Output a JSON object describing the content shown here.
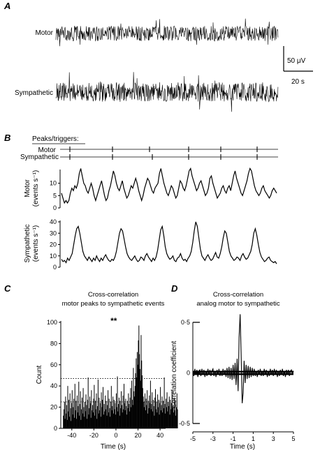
{
  "panels": {
    "A": "A",
    "B": "B",
    "C": "C",
    "D": "D"
  },
  "panelA": {
    "motor_label": "Motor",
    "sympathetic_label": "Sympathetic",
    "scale_voltage": "50 μV",
    "scale_time": "20 s"
  },
  "panelB": {
    "peaks_header": "Peaks/triggers:",
    "motor_label": "Motor",
    "sympathetic_label": "Sympathetic"
  },
  "chart_data": [
    {
      "id": "B-motor-rate",
      "type": "line",
      "ylabel_line1": "Motor",
      "ylabel_line2": "(events s⁻¹)",
      "ylim": [
        0,
        15
      ],
      "yticks": [
        "0",
        "5",
        "10"
      ],
      "values": [
        6,
        4,
        2,
        3,
        2,
        3,
        6,
        8,
        7,
        9,
        8,
        10,
        14,
        16,
        13,
        10,
        9,
        7,
        6,
        8,
        10,
        8,
        5,
        3,
        5,
        7,
        9,
        11,
        8,
        5,
        3,
        4,
        7,
        9,
        12,
        15,
        13,
        10,
        8,
        7,
        9,
        11,
        8,
        6,
        4,
        5,
        7,
        9,
        8,
        10,
        12,
        10,
        7,
        5,
        3,
        5,
        8,
        10,
        12,
        11,
        9,
        7,
        6,
        8,
        9,
        10,
        14,
        16,
        13,
        10,
        8,
        6,
        5,
        7,
        9,
        8,
        6,
        4,
        5,
        8,
        11,
        10,
        8,
        7,
        9,
        12,
        15,
        16,
        13,
        11,
        9,
        7,
        8,
        10,
        11,
        9,
        7,
        5,
        6,
        8,
        12,
        13,
        10,
        8,
        6,
        4,
        5,
        6,
        8,
        9,
        7,
        6,
        8,
        9,
        7,
        10,
        13,
        15,
        12,
        10,
        8,
        6,
        5,
        7,
        9,
        11,
        14,
        16,
        15,
        12,
        9,
        7,
        6,
        5,
        6,
        8,
        9,
        7,
        6,
        5,
        4,
        5,
        7,
        8,
        7,
        6
      ]
    },
    {
      "id": "B-sympathetic-rate",
      "type": "line",
      "ylabel_line1": "Sympathetic",
      "ylabel_line2": "(events s⁻¹)",
      "ylim": [
        0,
        40
      ],
      "yticks": [
        "0",
        "10",
        "20",
        "30",
        "40"
      ],
      "values": [
        7,
        5,
        6,
        4,
        8,
        6,
        9,
        12,
        20,
        28,
        34,
        36,
        30,
        22,
        14,
        10,
        8,
        6,
        9,
        7,
        5,
        8,
        6,
        10,
        7,
        5,
        8,
        6,
        9,
        11,
        8,
        6,
        5,
        7,
        6,
        9,
        14,
        22,
        30,
        34,
        32,
        25,
        18,
        12,
        9,
        7,
        6,
        8,
        10,
        7,
        5,
        6,
        9,
        8,
        6,
        10,
        12,
        9,
        7,
        5,
        8,
        6,
        9,
        15,
        24,
        33,
        36,
        28,
        18,
        12,
        9,
        7,
        8,
        10,
        6,
        5,
        8,
        9,
        12,
        8,
        6,
        7,
        5,
        8,
        10,
        14,
        22,
        32,
        40,
        36,
        26,
        16,
        10,
        8,
        6,
        9,
        11,
        8,
        6,
        7,
        10,
        13,
        9,
        8,
        12,
        18,
        26,
        32,
        30,
        22,
        14,
        10,
        8,
        6,
        7,
        9,
        8,
        6,
        10,
        12,
        9,
        7,
        8,
        11,
        14,
        20,
        30,
        34,
        28,
        20,
        13,
        9,
        7,
        5,
        6,
        8,
        9,
        6,
        5,
        4,
        5,
        3
      ]
    },
    {
      "id": "C",
      "type": "bar",
      "title_line1": "Cross-correlation",
      "title_line2": "motor peaks to sympathetic events",
      "xlabel": "Time (s)",
      "ylabel": "Count",
      "xlim": [
        -50,
        45
      ],
      "ylim": [
        0,
        100
      ],
      "xticks": [
        "-40",
        "-20",
        "0",
        "20",
        "40"
      ],
      "yticks": [
        "0",
        "20",
        "40",
        "60",
        "80",
        "100"
      ],
      "significance_mark": "**",
      "threshold_upper": 47,
      "threshold_lower": 25,
      "bin_width": 0.5,
      "x_start": -48,
      "values": [
        12,
        18,
        25,
        9,
        30,
        14,
        22,
        8,
        40,
        16,
        27,
        11,
        33,
        19,
        7,
        24,
        36,
        13,
        20,
        28,
        10,
        42,
        17,
        26,
        9,
        31,
        15,
        21,
        44,
        12,
        23,
        35,
        8,
        18,
        29,
        14,
        38,
        20,
        11,
        25,
        16,
        32,
        22,
        9,
        27,
        48,
        13,
        19,
        30,
        24,
        10,
        36,
        17,
        22,
        15,
        28,
        41,
        12,
        26,
        18,
        33,
        9,
        21,
        46,
        14,
        29,
        17,
        24,
        11,
        34,
        20,
        27,
        39,
        13,
        23,
        16,
        31,
        18,
        26,
        12,
        22,
        36,
        15,
        28,
        19,
        11,
        25,
        40,
        17,
        21,
        30,
        14,
        27,
        18,
        24,
        13,
        33,
        20,
        49,
        16,
        23,
        29,
        12,
        26,
        19,
        35,
        22,
        15,
        31,
        18,
        42,
        24,
        17,
        28,
        21,
        13,
        26,
        19,
        33,
        23,
        16,
        29,
        38,
        20,
        45,
        27,
        22,
        57,
        35,
        30,
        40,
        52,
        66,
        48,
        72,
        60,
        83,
        97,
        70,
        56,
        45,
        88,
        64,
        50,
        38,
        30,
        25,
        20,
        33,
        17,
        28,
        22,
        36,
        14,
        26,
        19,
        31,
        24,
        45,
        18,
        23,
        34,
        16,
        27,
        21,
        12,
        29,
        37,
        18,
        25,
        15,
        32,
        20,
        27,
        13,
        24,
        39,
        17,
        22,
        30,
        15,
        26,
        19,
        48,
        23,
        14,
        28,
        20,
        34,
        16,
        25,
        21,
        30,
        13,
        27,
        18,
        24,
        36,
        19,
        22,
        15,
        29,
        17,
        26,
        12,
        20,
        33,
        18
      ]
    },
    {
      "id": "D",
      "type": "line",
      "title_line1": "Cross-correlation",
      "title_line2": "analog motor to sympathetic",
      "xlabel": "Time (s)",
      "ylabel": "Correlation coefficient",
      "xlim": [
        -5,
        5
      ],
      "ylim": [
        -0.5,
        0.5
      ],
      "xticks": [
        "-5",
        "-3",
        "-1",
        "1",
        "3",
        "5"
      ],
      "yticks": [
        "0·5",
        "0",
        "-0·5"
      ],
      "x_start": -5,
      "x_step": 0.1,
      "values": [
        0.02,
        -0.03,
        0.04,
        -0.02,
        0.03,
        -0.04,
        0.02,
        0.03,
        -0.03,
        0.04,
        -0.02,
        0.03,
        -0.04,
        0.02,
        -0.03,
        0.04,
        -0.02,
        0.03,
        -0.03,
        0.02,
        0.04,
        -0.03,
        0.02,
        -0.04,
        0.03,
        -0.02,
        0.04,
        -0.03,
        0.02,
        -0.03,
        0.04,
        -0.02,
        0.03,
        -0.04,
        0.05,
        -0.05,
        0.06,
        -0.06,
        0.05,
        -0.07,
        0.08,
        -0.06,
        0.1,
        -0.12,
        0.14,
        -0.18,
        0.35,
        0.58,
        0.2,
        -0.3,
        -0.2,
        0.12,
        -0.1,
        0.08,
        -0.06,
        0.07,
        -0.05,
        0.06,
        -0.04,
        0.05,
        -0.03,
        0.04,
        -0.03,
        0.02,
        -0.04,
        0.03,
        -0.02,
        0.04,
        -0.03,
        0.02,
        -0.03,
        0.04,
        -0.02,
        0.03,
        -0.04,
        0.02,
        -0.03,
        0.04,
        -0.02,
        0.03,
        -0.03,
        0.04,
        -0.02,
        0.03,
        -0.04,
        0.02,
        -0.03,
        0.03,
        -0.02,
        0.04,
        -0.03,
        0.02,
        -0.04,
        0.03,
        -0.02,
        0.03,
        -0.03,
        0.02,
        0.03,
        -0.02,
        0.02
      ]
    }
  ]
}
